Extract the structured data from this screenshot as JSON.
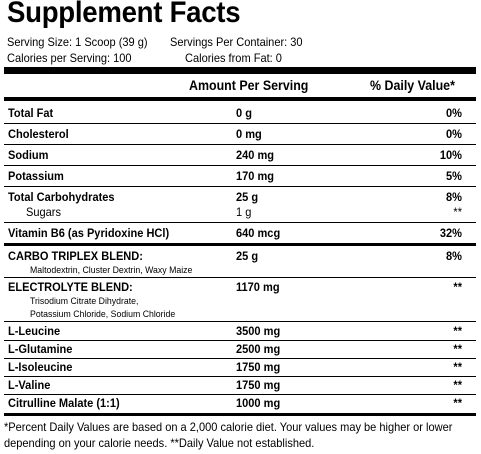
{
  "title": "Supplement Facts",
  "serving": {
    "size": "Serving Size: 1 Scoop (39 g)",
    "per_container": "Servings Per Container: 30",
    "calories": "Calories per Serving: 100",
    "calories_fat": "Calories from Fat: 0"
  },
  "columns": {
    "amount": "Amount Per Serving",
    "daily_value": "% Daily Value*"
  },
  "rows": [
    {
      "name": "Total Fat",
      "amount": "0 g",
      "dv": "0%"
    },
    {
      "name": "Cholesterol",
      "amount": "0 mg",
      "dv": "0%"
    },
    {
      "name": "Sodium",
      "amount": "240 mg",
      "dv": "10%"
    },
    {
      "name": "Potassium",
      "amount": "170 mg",
      "dv": "5%"
    },
    {
      "name": "Total Carbohydrates",
      "amount": "25 g",
      "dv": "8%"
    },
    {
      "name": "Sugars",
      "amount": "1 g",
      "dv": "**"
    },
    {
      "name": "Vitamin B6 (as Pyridoxine HCl)",
      "amount": "640 mcg",
      "dv": "32%"
    },
    {
      "name": "CARBO TRIPLEX BLEND:",
      "amount": "25 g",
      "dv": "8%",
      "ingredients": [
        "Maltodextrin, Cluster Dextrin, Waxy Maize"
      ]
    },
    {
      "name": "ELECTROLYTE BLEND:",
      "amount": "1170 mg",
      "dv": "**",
      "ingredients": [
        "Trisodium Citrate Dihydrate,",
        "Potassium Chloride, Sodium Chloride"
      ]
    },
    {
      "name": "L-Leucine",
      "amount": "3500 mg",
      "dv": "**"
    },
    {
      "name": "L-Glutamine",
      "amount": "2500 mg",
      "dv": "**"
    },
    {
      "name": "L-Isoleucine",
      "amount": "1750 mg",
      "dv": "**"
    },
    {
      "name": "L-Valine",
      "amount": "1750 mg",
      "dv": "**"
    },
    {
      "name": "Citrulline Malate (1:1)",
      "amount": "1000 mg",
      "dv": "**"
    }
  ],
  "footnote": {
    "line1": "*Percent Daily Values are based on a 2,000 calorie diet. Your values may be higher or lower",
    "line2": "depending on your calorie needs. **Daily Value not established."
  }
}
